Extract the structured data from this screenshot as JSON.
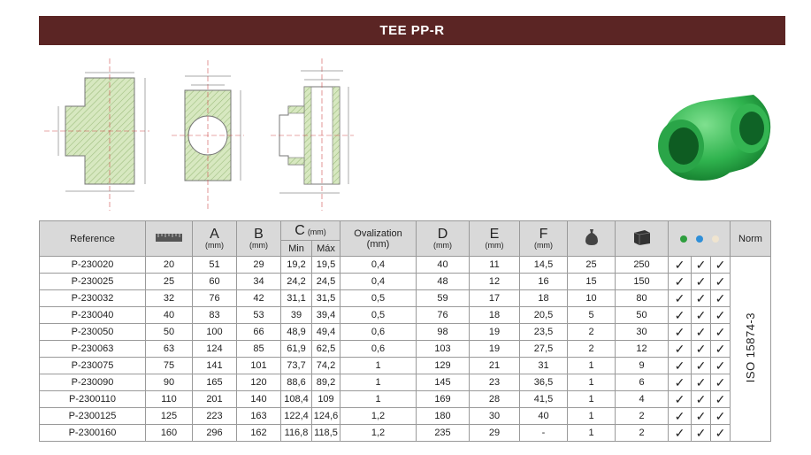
{
  "title": "TEE PP-R",
  "headers": {
    "reference": "Reference",
    "a": "A",
    "a_unit": "(mm)",
    "b": "B",
    "b_unit": "(mm)",
    "c": "C",
    "c_unit": "(mm)",
    "c_min": "Min",
    "c_max": "Máx",
    "ovalization": "Ovalization",
    "ovalization_unit": "(mm)",
    "d": "D",
    "d_unit": "(mm)",
    "e": "E",
    "e_unit": "(mm)",
    "f": "F",
    "f_unit": "(mm)",
    "norm": "Norm"
  },
  "icons": {
    "size": "ruler-icon",
    "bag": "bag-icon",
    "box": "box-icon",
    "colors": [
      "#2e9e3e",
      "#2f8fd8",
      "#efe4cf"
    ]
  },
  "check_mark": "✓",
  "norm_value": "ISO 15874-3",
  "rows": [
    {
      "ref": "P-230020",
      "size": "20",
      "a": "51",
      "b": "29",
      "cmin": "19,2",
      "cmax": "19,5",
      "oval": "0,4",
      "d": "40",
      "e": "11",
      "f": "14,5",
      "bag": "25",
      "box": "250"
    },
    {
      "ref": "P-230025",
      "size": "25",
      "a": "60",
      "b": "34",
      "cmin": "24,2",
      "cmax": "24,5",
      "oval": "0,4",
      "d": "48",
      "e": "12",
      "f": "16",
      "bag": "15",
      "box": "150"
    },
    {
      "ref": "P-230032",
      "size": "32",
      "a": "76",
      "b": "42",
      "cmin": "31,1",
      "cmax": "31,5",
      "oval": "0,5",
      "d": "59",
      "e": "17",
      "f": "18",
      "bag": "10",
      "box": "80"
    },
    {
      "ref": "P-230040",
      "size": "40",
      "a": "83",
      "b": "53",
      "cmin": "39",
      "cmax": "39,4",
      "oval": "0,5",
      "d": "76",
      "e": "18",
      "f": "20,5",
      "bag": "5",
      "box": "50"
    },
    {
      "ref": "P-230050",
      "size": "50",
      "a": "100",
      "b": "66",
      "cmin": "48,9",
      "cmax": "49,4",
      "oval": "0,6",
      "d": "98",
      "e": "19",
      "f": "23,5",
      "bag": "2",
      "box": "30"
    },
    {
      "ref": "P-230063",
      "size": "63",
      "a": "124",
      "b": "85",
      "cmin": "61,9",
      "cmax": "62,5",
      "oval": "0,6",
      "d": "103",
      "e": "19",
      "f": "27,5",
      "bag": "2",
      "box": "12"
    },
    {
      "ref": "P-230075",
      "size": "75",
      "a": "141",
      "b": "101",
      "cmin": "73,7",
      "cmax": "74,2",
      "oval": "1",
      "d": "129",
      "e": "21",
      "f": "31",
      "bag": "1",
      "box": "9"
    },
    {
      "ref": "P-230090",
      "size": "90",
      "a": "165",
      "b": "120",
      "cmin": "88,6",
      "cmax": "89,2",
      "oval": "1",
      "d": "145",
      "e": "23",
      "f": "36,5",
      "bag": "1",
      "box": "6"
    },
    {
      "ref": "P-2300110",
      "size": "110",
      "a": "201",
      "b": "140",
      "cmin": "108,4",
      "cmax": "109",
      "oval": "1",
      "d": "169",
      "e": "28",
      "f": "41,5",
      "bag": "1",
      "box": "4"
    },
    {
      "ref": "P-2300125",
      "size": "125",
      "a": "223",
      "b": "163",
      "cmin": "122,4",
      "cmax": "124,6",
      "oval": "1,2",
      "d": "180",
      "e": "30",
      "f": "40",
      "bag": "1",
      "box": "2"
    },
    {
      "ref": "P-2300160",
      "size": "160",
      "a": "296",
      "b": "162",
      "cmin": "116,8",
      "cmax": "118,5",
      "oval": "1,2",
      "d": "235",
      "e": "29",
      "f": "-",
      "bag": "1",
      "box": "2"
    }
  ]
}
